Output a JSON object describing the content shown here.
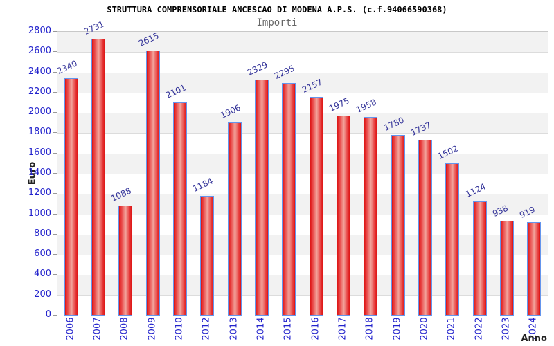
{
  "header": {
    "title": "STRUTTURA COMPRENSORIALE ANCESCAO DI MODENA A.P.S. (c.f.94066590368)",
    "subtitle": "Importi"
  },
  "chart_data": {
    "type": "bar",
    "title": "STRUTTURA COMPRENSORIALE ANCESCAO DI MODENA A.P.S. (c.f.94066590368)",
    "subtitle": "Importi",
    "xlabel": "Anno",
    "ylabel": "Euro",
    "categories": [
      "2006",
      "2007",
      "2008",
      "2009",
      "2010",
      "2012",
      "2013",
      "2014",
      "2015",
      "2016",
      "2017",
      "2018",
      "2019",
      "2020",
      "2021",
      "2022",
      "2023",
      "2024"
    ],
    "values": [
      2340,
      2731,
      1088,
      2615,
      2101,
      1184,
      1906,
      2329,
      2295,
      2157,
      1975,
      1958,
      1780,
      1737,
      1502,
      1124,
      938,
      919
    ],
    "ylim": [
      0,
      2800
    ],
    "ytick_step": 200,
    "yticks": [
      0,
      200,
      400,
      600,
      800,
      1000,
      1200,
      1400,
      1600,
      1800,
      2000,
      2200,
      2400,
      2600,
      2800
    ],
    "grid": "horizontal gridlines with alternating gray/white bands",
    "legend": "none",
    "bar_label_rotation_deg": -25,
    "x_label_rotation_deg": -90
  },
  "colors": {
    "bar_edge": "#dd1414",
    "bar_mid": "#f2a49c",
    "bar_border": "#6495ed",
    "tick_label": "#2323cc",
    "value_label": "#333399",
    "band_gray": "#f2f2f2",
    "grid": "#dcdcdc",
    "title": "#000000",
    "subtitle": "#666666",
    "axis_title": "#222222"
  }
}
